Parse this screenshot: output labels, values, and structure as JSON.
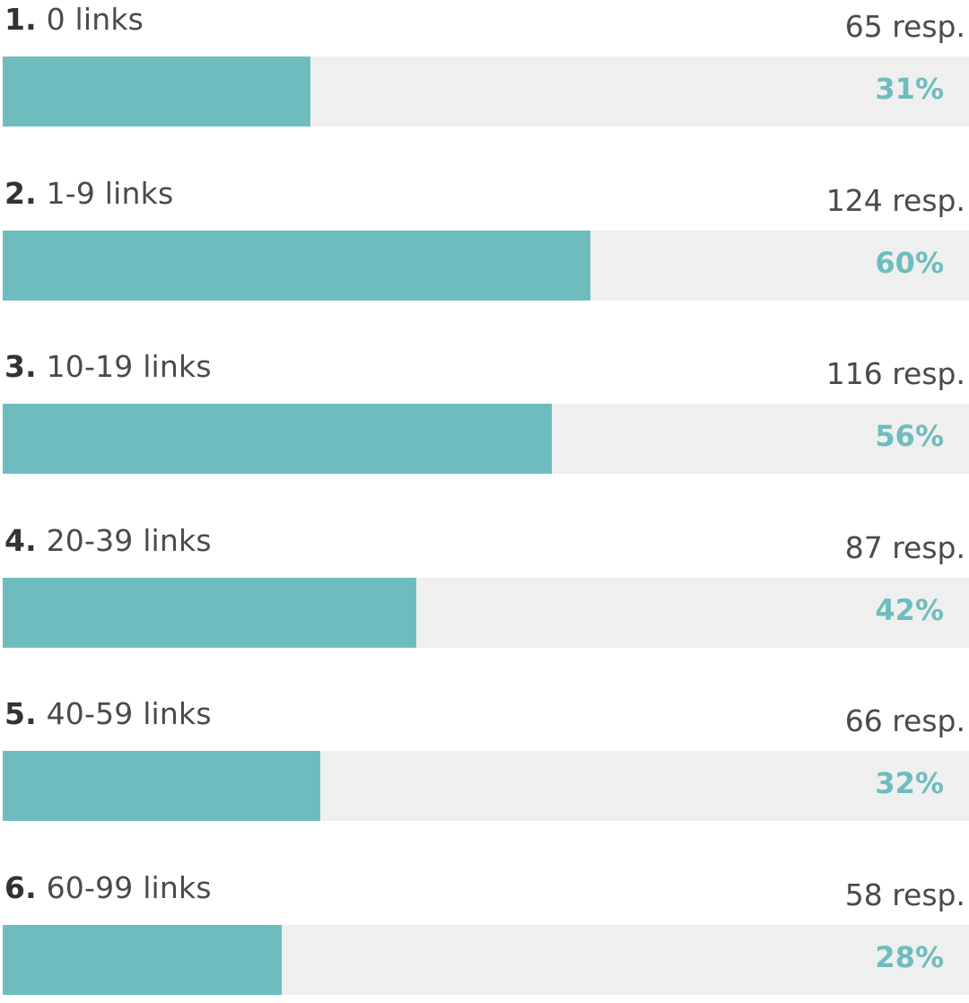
{
  "colors": {
    "bar": "#6fbcbe",
    "track": "#efefef",
    "label": "#4a4a4a",
    "percent": "#6fbcbe"
  },
  "chart_data": {
    "type": "bar",
    "orientation": "horizontal",
    "categories": [
      "0 links",
      "1-9 links",
      "10-19 links",
      "20-39 links",
      "40-59 links",
      "60-99 links"
    ],
    "rows": [
      {
        "num": "1.",
        "label": "0 links",
        "count_label": "65 resp.",
        "percent_label": "31%",
        "value": 31
      },
      {
        "num": "2.",
        "label": "1-9 links",
        "count_label": "124 resp.",
        "percent_label": "60%",
        "value": 60
      },
      {
        "num": "3.",
        "label": "10-19 links",
        "count_label": "116 resp.",
        "percent_label": "56%",
        "value": 56
      },
      {
        "num": "4.",
        "label": "20-39 links",
        "count_label": "87 resp.",
        "percent_label": "42%",
        "value": 42
      },
      {
        "num": "5.",
        "label": "40-59 links",
        "count_label": "66 resp.",
        "percent_label": "32%",
        "value": 32
      },
      {
        "num": "6.",
        "label": "60-99 links",
        "count_label": "58 resp.",
        "percent_label": "28%",
        "value": 28
      }
    ],
    "responses": [
      65,
      124,
      116,
      87,
      66,
      58
    ],
    "values": [
      31,
      60,
      56,
      42,
      32,
      28
    ],
    "xlim": [
      0,
      100
    ],
    "grid": false
  }
}
